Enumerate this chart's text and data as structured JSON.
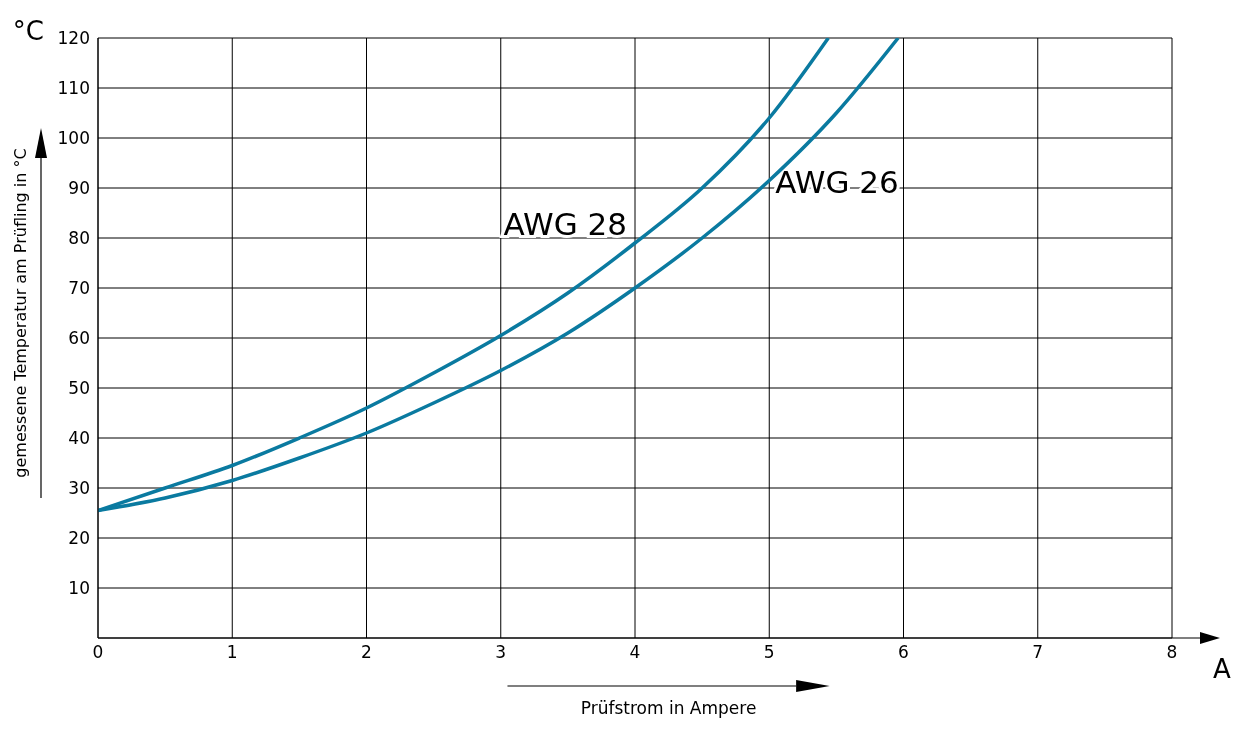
{
  "chart_data": {
    "type": "line",
    "xlabel": "Prüfstrom in Ampere",
    "ylabel": "gemessene Temperatur am Prüfling in °C",
    "annotations": [
      "°C",
      "A"
    ],
    "series": [
      {
        "name": "AWG 28",
        "color": "#0a7aa0",
        "x": [
          0,
          0.5,
          1,
          1.5,
          2,
          2.5,
          3,
          3.5,
          4,
          4.5,
          5,
          5.44
        ],
        "values": [
          25.5,
          30,
          34.5,
          40,
          46,
          53,
          60.5,
          69,
          79,
          90,
          104,
          120
        ]
      },
      {
        "name": "AWG 26",
        "color": "#0a7aa0",
        "x": [
          0,
          0.5,
          1,
          1.5,
          2,
          2.5,
          3,
          3.5,
          4,
          4.5,
          5,
          5.5,
          5.96
        ],
        "values": [
          25.5,
          28,
          31.5,
          36,
          41,
          47,
          53.5,
          61,
          70,
          80,
          91.5,
          105,
          120
        ]
      }
    ],
    "xlim": [
      0,
      8
    ],
    "xticks": [
      0,
      1,
      2,
      3,
      4,
      5,
      6,
      7,
      8
    ],
    "ylim": [
      0,
      120
    ],
    "yticks": [
      {
        "value": 0,
        "label": null
      },
      10,
      20,
      30,
      40,
      50,
      60,
      70,
      80,
      90,
      100,
      110,
      120
    ],
    "grid": true,
    "legend": false,
    "marker": "none",
    "line_style": "solid"
  }
}
